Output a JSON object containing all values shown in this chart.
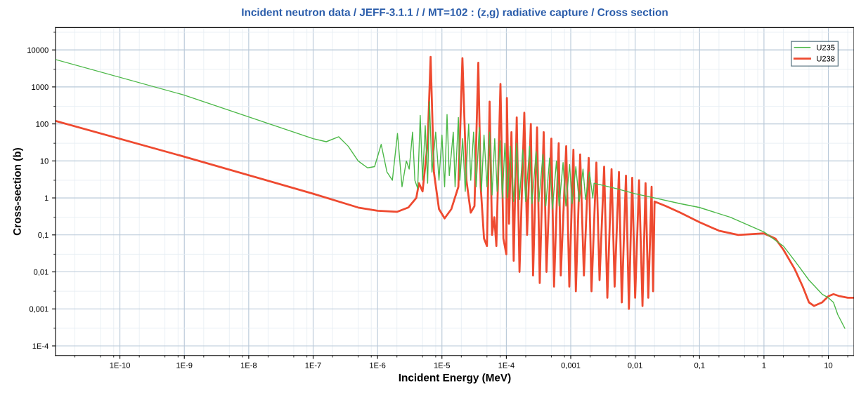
{
  "chart_data": {
    "type": "line",
    "title": "Incident neutron data / JEFF-3.1.1 / / MT=102 : (z,g) radiative capture / Cross section",
    "xlabel": "Incident Energy (MeV)",
    "ylabel": "Cross-section (b)",
    "log": "xy",
    "grid": true,
    "legend": "top right",
    "marker": "none",
    "line_style": "solid",
    "xlim": [
      1e-11,
      25
    ],
    "ylim": [
      5.5e-05,
      40000
    ],
    "xticks": [
      {
        "value": 1e-10,
        "label": "1E-10"
      },
      {
        "value": 1e-09,
        "label": "1E-9"
      },
      {
        "value": 1e-08,
        "label": "1E-8"
      },
      {
        "value": 1e-07,
        "label": "1E-7"
      },
      {
        "value": 1e-06,
        "label": "1E-6"
      },
      {
        "value": 1e-05,
        "label": "1E-5"
      },
      {
        "value": 0.0001,
        "label": "1E-4"
      },
      {
        "value": 0.001,
        "label": "0,001"
      },
      {
        "value": 0.01,
        "label": "0,01"
      },
      {
        "value": 0.1,
        "label": "0,1"
      },
      1,
      10
    ],
    "yticks": [
      {
        "value": 0.0001,
        "label": "1E-4"
      },
      {
        "value": 0.001,
        "label": "0,001"
      },
      {
        "value": 0.01,
        "label": "0,01"
      },
      {
        "value": 0.1,
        "label": "0,1"
      },
      1,
      10,
      100,
      1000,
      10000
    ],
    "series": [
      {
        "name": "U238",
        "color": "#ee4a30",
        "x": [
          1e-11,
          1e-09,
          1e-07,
          5e-07,
          1e-06,
          2e-06,
          3e-06,
          4e-06,
          4.4e-06,
          5e-06,
          6e-06,
          6.67e-06,
          7.5e-06,
          9e-06,
          1.1e-05,
          1.4e-05,
          1.8e-05,
          2.08e-05,
          2.4e-05,
          2.8e-05,
          3.2e-05,
          3.67e-05,
          4e-05,
          4.5e-05,
          5e-05,
          5.5e-05,
          6e-05,
          6.5e-05,
          7e-05,
          8.1e-05,
          9e-05,
          0.0001,
          0.000102,
          0.00011,
          0.00012,
          0.00013,
          0.000145,
          0.00016,
          0.00019,
          0.00021,
          0.00024,
          0.00026,
          0.0003,
          0.00033,
          0.00038,
          0.00042,
          0.0005,
          0.00055,
          0.00065,
          0.0007,
          0.00085,
          0.00095,
          0.0011,
          0.0012,
          0.0014,
          0.0016,
          0.0019,
          0.0021,
          0.0025,
          0.0028,
          0.0033,
          0.0037,
          0.0043,
          0.0048,
          0.0056,
          0.0062,
          0.0072,
          0.008,
          0.009,
          0.01,
          0.0115,
          0.013,
          0.0145,
          0.016,
          0.018,
          0.019,
          0.02,
          0.03,
          0.05,
          0.1,
          0.2,
          0.4,
          1,
          1.5,
          2,
          3,
          4,
          5,
          6,
          8,
          10,
          12,
          15,
          20,
          25
        ],
        "values": [
          120,
          13,
          1.3,
          0.55,
          0.45,
          0.42,
          0.55,
          1.0,
          2.5,
          1.5,
          30,
          6500,
          5,
          0.5,
          0.28,
          0.5,
          2,
          6000,
          3,
          0.4,
          0.6,
          4500,
          2,
          0.08,
          0.05,
          400,
          0.1,
          0.3,
          0.05,
          1200,
          0.08,
          0.03,
          500,
          0.2,
          60,
          0.02,
          150,
          0.01,
          200,
          0.1,
          100,
          0.008,
          80,
          0.005,
          60,
          0.01,
          40,
          0.004,
          30,
          0.008,
          25,
          0.004,
          20,
          0.003,
          15,
          0.008,
          12,
          0.003,
          9,
          0.006,
          7,
          0.002,
          6,
          0.004,
          5,
          0.0015,
          4,
          0.001,
          3.5,
          0.002,
          3,
          0.0012,
          2.5,
          0.002,
          2,
          0.003,
          0.8,
          0.6,
          0.4,
          0.22,
          0.13,
          0.1,
          0.11,
          0.08,
          0.04,
          0.012,
          0.004,
          0.0015,
          0.0012,
          0.0015,
          0.0022,
          0.0025,
          0.0022,
          0.002,
          0.002
        ]
      },
      {
        "name": "U235",
        "color": "#4cb848",
        "x": [
          1e-11,
          1e-09,
          1e-07,
          1.6e-07,
          2.5e-07,
          3.5e-07,
          5e-07,
          7e-07,
          9e-07,
          1.14e-06,
          1.4e-06,
          1.7e-06,
          2.04e-06,
          2.4e-06,
          2.8e-06,
          3.1e-06,
          3.5e-06,
          3.8e-06,
          4.2e-06,
          4.6e-06,
          5e-06,
          5.5e-06,
          6e-06,
          6.4e-06,
          7e-06,
          8e-06,
          9e-06,
          1e-05,
          1.1e-05,
          1.2e-05,
          1.3e-05,
          1.5e-05,
          1.6e-05,
          1.8e-05,
          1.9e-05,
          2.1e-05,
          2.3e-05,
          2.6e-05,
          2.8e-05,
          3.1e-05,
          3.4e-05,
          3.8e-05,
          4.1e-05,
          4.5e-05,
          5e-05,
          5.5e-05,
          6e-05,
          6.6e-05,
          7.2e-05,
          8e-05,
          8.7e-05,
          9.5e-05,
          0.000105,
          0.000115,
          0.00013,
          0.000145,
          0.00016,
          0.00018,
          0.0002,
          0.00023,
          0.00025,
          0.00029,
          0.00032,
          0.00037,
          0.00041,
          0.00047,
          0.00052,
          0.0006,
          0.00066,
          0.00076,
          0.00084,
          0.00096,
          0.00105,
          0.0012,
          0.00135,
          0.00155,
          0.0017,
          0.00195,
          0.0022,
          0.0023,
          0.005,
          0.01,
          0.02,
          0.05,
          0.1,
          0.3,
          1,
          2,
          3,
          5,
          8,
          10,
          12,
          14,
          18
        ],
        "values": [
          5500,
          600,
          40,
          33,
          45,
          25,
          10,
          6.5,
          7,
          28,
          5,
          3,
          55,
          2,
          10,
          6,
          60,
          3,
          1.8,
          170,
          3,
          90,
          2.5,
          400,
          5,
          60,
          3,
          50,
          2,
          180,
          4,
          60,
          2,
          150,
          3,
          40,
          1.5,
          100,
          3,
          60,
          2,
          80,
          1.5,
          50,
          2,
          60,
          1.2,
          40,
          1.5,
          35,
          1,
          30,
          1,
          25,
          0.8,
          30,
          0.9,
          20,
          0.8,
          25,
          0.7,
          18,
          0.8,
          15,
          0.6,
          12,
          0.5,
          10,
          0.6,
          9,
          0.6,
          8,
          0.7,
          7,
          0.8,
          6,
          0.9,
          5,
          1,
          2.5,
          1.8,
          1.3,
          1.0,
          0.7,
          0.55,
          0.3,
          0.12,
          0.05,
          0.02,
          0.006,
          0.0025,
          0.002,
          0.0015,
          0.0007,
          0.0003
        ]
      }
    ]
  }
}
